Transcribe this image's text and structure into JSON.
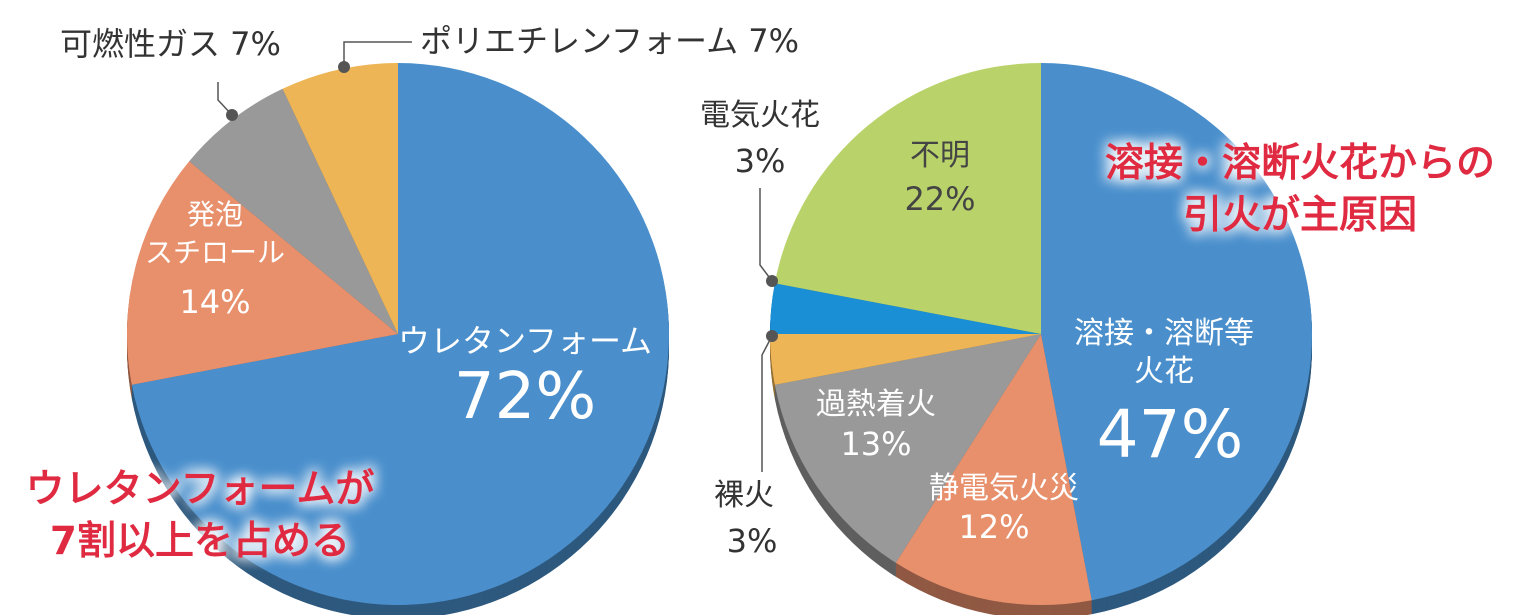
{
  "chart_data": [
    {
      "type": "pie",
      "title": "",
      "slices": [
        {
          "label": "ウレタンフォーム",
          "value": 72,
          "value_text": "72%",
          "color": "#4a8fcc"
        },
        {
          "label": "発泡スチロール",
          "label_lines": [
            "発泡",
            "スチロール"
          ],
          "value": 14,
          "value_text": "14%",
          "color": "#e8906c"
        },
        {
          "label": "可燃性ガス",
          "value": 7,
          "value_text": "7%",
          "color": "#999999"
        },
        {
          "label": "ポリエチレンフォーム",
          "value": 7,
          "value_text": "7%",
          "color": "#eeb556"
        }
      ],
      "callout": [
        "ウレタンフォームが",
        "7割以上を占める"
      ]
    },
    {
      "type": "pie",
      "title": "",
      "slices": [
        {
          "label": "溶接・溶断等火花",
          "label_lines": [
            "溶接・溶断等",
            "火花"
          ],
          "value": 47,
          "value_text": "47%",
          "color": "#4a8fcc"
        },
        {
          "label": "静電気火災",
          "value": 12,
          "value_text": "12%",
          "color": "#e8906c"
        },
        {
          "label": "過熱着火",
          "value": 13,
          "value_text": "13%",
          "color": "#999999"
        },
        {
          "label": "裸火",
          "value": 3,
          "value_text": "3%",
          "color": "#eeb556"
        },
        {
          "label": "電気火花",
          "value": 3,
          "value_text": "3%",
          "color": "#1a8fd6"
        },
        {
          "label": "不明",
          "value": 22,
          "value_text": "22%",
          "color": "#b9d36a"
        }
      ],
      "callout": [
        "溶接・溶断火花からの",
        "引火が主原因"
      ]
    }
  ]
}
